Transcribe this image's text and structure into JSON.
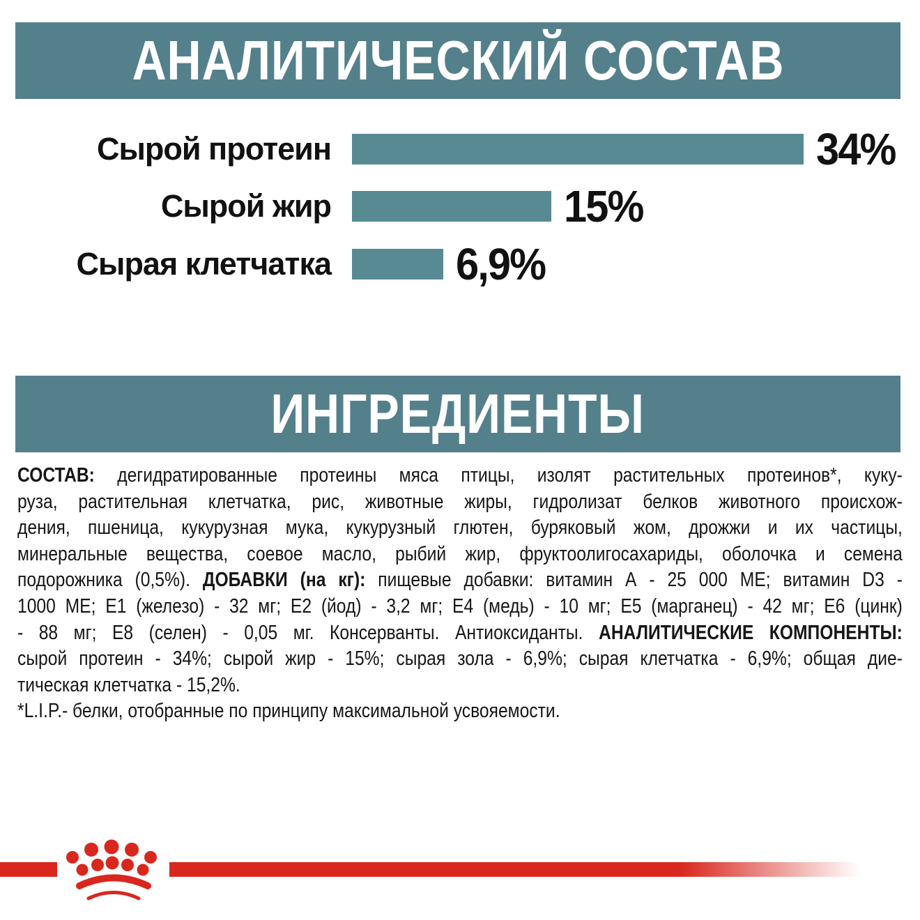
{
  "colors": {
    "teal_banner": "#54808B",
    "bar_teal": "#578A92",
    "brand_red": "#D9271E",
    "text": "#161616"
  },
  "header1": {
    "title": "АНАЛИТИЧЕСКИЙ СОСТАВ"
  },
  "header2": {
    "title": "ИНГРЕДИЕНТЫ"
  },
  "chart_data": {
    "type": "bar",
    "orientation": "horizontal",
    "title": "АНАЛИТИЧЕСКИЙ СОСТАВ",
    "categories": [
      "Сырой протеин",
      "Сырой жир",
      "Сырая клетчатка"
    ],
    "values": [
      34,
      15,
      6.9
    ],
    "value_labels": [
      "34%",
      "15%",
      "6,9%"
    ],
    "unit": "%",
    "xlim": [
      0,
      34
    ],
    "grid": false,
    "bar_color": "#578A92"
  },
  "ingredients": {
    "lines": [
      {
        "justify": true,
        "segments": [
          {
            "t": "СОСТАВ:",
            "b": true
          },
          {
            "t": " дегидратированные протеины мяса птицы, изолят растительных протеинов*, куку-",
            "b": false
          }
        ]
      },
      {
        "justify": true,
        "segments": [
          {
            "t": "руза, растительная клетчатка, рис, животные жиры, гидролизат белков животного происхож-",
            "b": false
          }
        ]
      },
      {
        "justify": true,
        "segments": [
          {
            "t": "дения, пшеница, кукурузная мука, кукурузный глютен, буряковый жом, дрожжи и их частицы,",
            "b": false
          }
        ]
      },
      {
        "justify": true,
        "segments": [
          {
            "t": "минеральные вещества, соевое масло, рыбий жир, фруктоолигосахариды, оболочка и семена",
            "b": false
          }
        ]
      },
      {
        "justify": true,
        "segments": [
          {
            "t": "подорожника (0,5%). ",
            "b": false
          },
          {
            "t": "ДОБАВКИ (на кг):",
            "b": true
          },
          {
            "t": " пищевые добавки: витамин А - 25 000 МЕ; витамин D3 -",
            "b": false
          }
        ]
      },
      {
        "justify": true,
        "segments": [
          {
            "t": "1000 МЕ; Е1 (железо) - 32 мг; Е2 (йод) - 3,2 мг; Е4 (медь) - 10 мг; Е5 (марганец) - 42 мг; Е6 (цинк)",
            "b": false
          }
        ]
      },
      {
        "justify": true,
        "segments": [
          {
            "t": "- 88 мг; Е8 (селен) - 0,05 мг. Консерванты. Антиоксиданты. ",
            "b": false
          },
          {
            "t": "АНАЛИТИЧЕСКИЕ КОМПОНЕНТЫ:",
            "b": true
          }
        ]
      },
      {
        "justify": true,
        "segments": [
          {
            "t": "сырой протеин - 34%; сырой жир - 15%; сырая зола - 6,9%; сырая клетчатка - 6,9%; общая дие-",
            "b": false
          }
        ]
      },
      {
        "justify": false,
        "segments": [
          {
            "t": "тическая клетчатка - 15,2%.",
            "b": false
          }
        ]
      },
      {
        "justify": false,
        "segments": [
          {
            "t": "*L.I.P.- белки, отобранные по принципу максимальной усвояемости.",
            "b": false
          }
        ]
      }
    ]
  },
  "footer": {
    "brand_icon": "royal-canin-crown"
  }
}
